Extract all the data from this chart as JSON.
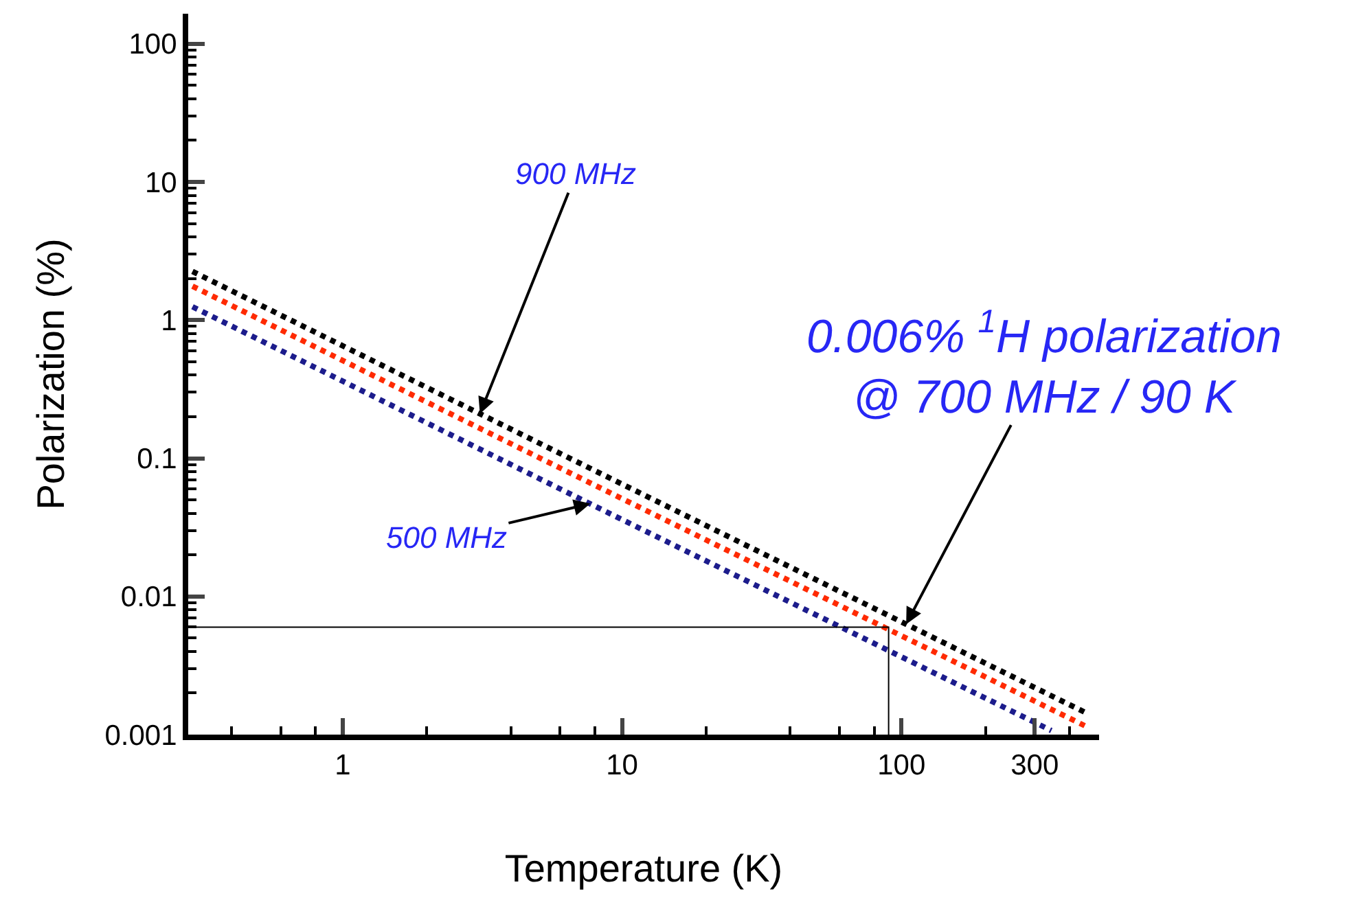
{
  "chart_data": {
    "type": "line",
    "xlabel": "Temperature (K)",
    "ylabel": "Polarization (%)",
    "log": "xy",
    "line_style": "dotted",
    "marker": "none",
    "xlim": [
      0.28,
      510
    ],
    "ylim": [
      0.001,
      165
    ],
    "xticks": [
      {
        "value": 0.4,
        "label": null
      },
      {
        "value": 0.6,
        "label": null
      },
      {
        "value": 0.8,
        "label": null
      },
      1,
      {
        "value": 2,
        "label": null
      },
      {
        "value": 4,
        "label": null
      },
      {
        "value": 6,
        "label": null
      },
      {
        "value": 8,
        "label": null
      },
      10,
      {
        "value": 20,
        "label": null
      },
      {
        "value": 40,
        "label": null
      },
      {
        "value": 60,
        "label": null
      },
      {
        "value": 80,
        "label": null
      },
      100,
      {
        "value": 200,
        "label": null
      },
      300,
      {
        "value": 400,
        "label": null
      }
    ],
    "yticks": [
      0.001,
      {
        "value": 0.002,
        "label": null
      },
      {
        "value": 0.003,
        "label": null
      },
      {
        "value": 0.004,
        "label": null
      },
      {
        "value": 0.005,
        "label": null
      },
      {
        "value": 0.006,
        "label": null
      },
      {
        "value": 0.007,
        "label": null
      },
      {
        "value": 0.008,
        "label": null
      },
      {
        "value": 0.009,
        "label": null
      },
      0.01,
      {
        "value": 0.02,
        "label": null
      },
      {
        "value": 0.03,
        "label": null
      },
      {
        "value": 0.04,
        "label": null
      },
      {
        "value": 0.05,
        "label": null
      },
      {
        "value": 0.06,
        "label": null
      },
      {
        "value": 0.07,
        "label": null
      },
      {
        "value": 0.08,
        "label": null
      },
      {
        "value": 0.09,
        "label": null
      },
      0.1,
      {
        "value": 0.2,
        "label": null
      },
      {
        "value": 0.3,
        "label": null
      },
      {
        "value": 0.4,
        "label": null
      },
      {
        "value": 0.5,
        "label": null
      },
      {
        "value": 0.6,
        "label": null
      },
      {
        "value": 0.7,
        "label": null
      },
      {
        "value": 0.8,
        "label": null
      },
      {
        "value": 0.9,
        "label": null
      },
      1,
      {
        "value": 2,
        "label": null
      },
      {
        "value": 3,
        "label": null
      },
      {
        "value": 4,
        "label": null
      },
      {
        "value": 5,
        "label": null
      },
      {
        "value": 6,
        "label": null
      },
      {
        "value": 7,
        "label": null
      },
      {
        "value": 8,
        "label": null
      },
      {
        "value": 9,
        "label": null
      },
      10,
      {
        "value": 20,
        "label": null
      },
      {
        "value": 30,
        "label": null
      },
      {
        "value": 40,
        "label": null
      },
      {
        "value": 50,
        "label": null
      },
      {
        "value": 60,
        "label": null
      },
      {
        "value": 70,
        "label": null
      },
      {
        "value": 80,
        "label": null
      },
      {
        "value": 90,
        "label": null
      },
      100
    ],
    "series": [
      {
        "color": "#000000",
        "x": [
          0.29,
          10,
          457
        ],
        "values": [
          2.25,
          0.065,
          0.00144
        ]
      },
      {
        "color": "#ff2a00",
        "x": [
          0.29,
          10,
          457
        ],
        "values": [
          1.76,
          0.051,
          0.00115
        ]
      },
      {
        "color": "#1c1c8c",
        "x": [
          0.29,
          10,
          344
        ],
        "values": [
          1.25,
          0.036,
          0.00107
        ]
      },
      {
        "type": "line",
        "line_style": "solid",
        "color": "#000000",
        "x": [
          0.28,
          90,
          90
        ],
        "values": [
          0.006,
          0.006,
          0.001
        ]
      }
    ],
    "annotations": [
      {
        "text": "900 MHz",
        "x": 3.1,
        "y": 0.21
      },
      {
        "text": "500 MHz",
        "x": 7.7,
        "y": 0.047
      },
      {
        "text": "0.006% $^{1}$H polarization\n@ 700 MHz / 90 K",
        "x": 104,
        "y": 0.0063
      }
    ]
  }
}
